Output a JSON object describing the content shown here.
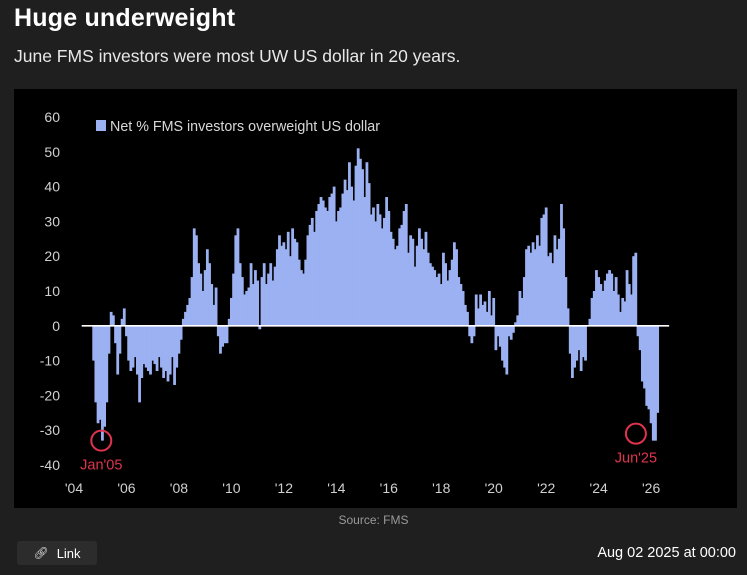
{
  "header": {
    "title": "Huge underweight",
    "subtitle": "June FMS investors were most UW US dollar in 20 years."
  },
  "footer": {
    "source": "Source: FMS",
    "link_label": "Link",
    "link_icon": "link-icon",
    "timestamp": "Aug 02 2025 at 00:00"
  },
  "colors": {
    "bar": "#9bb1f2",
    "background": "#000000",
    "axis_text": "#d0d0d0",
    "annotation": "#e0344d",
    "zero_line": "#ffffff"
  },
  "chart_data": {
    "type": "bar",
    "title": "",
    "xlabel": "",
    "ylabel": "",
    "xlim": [
      2004.0,
      2026.3
    ],
    "ylim": [
      -40,
      60
    ],
    "x_ticks": [
      2004,
      2006,
      2008,
      2010,
      2012,
      2014,
      2016,
      2018,
      2020,
      2022,
      2024,
      2026
    ],
    "x_tick_labels": [
      "'04",
      "'06",
      "'08",
      "'10",
      "'12",
      "'14",
      "'16",
      "'18",
      "'20",
      "'22",
      "'24",
      "'26"
    ],
    "y_ticks": [
      60,
      50,
      40,
      30,
      20,
      10,
      0,
      -10,
      -20,
      -30,
      -40
    ],
    "grid": false,
    "legend": {
      "position": "top-left",
      "entries": [
        "Net % FMS investors overweight US dollar"
      ]
    },
    "series": [
      {
        "name": "Net % FMS investors overweight US dollar",
        "x_start": 2004.75,
        "step": 0.08333,
        "values": [
          -10,
          -22,
          -28,
          -27,
          -33,
          -29,
          -22,
          -8,
          4,
          3,
          -5,
          -14,
          -8,
          2,
          5,
          -3,
          -10,
          -13,
          -12,
          -9,
          -14,
          -22,
          -15,
          -11,
          -12,
          -13,
          -14,
          -10,
          -11,
          -13,
          -9,
          -12,
          -15,
          -13,
          -16,
          -14,
          -9,
          -17,
          -12,
          -8,
          -4,
          2,
          4,
          6,
          8,
          14,
          28,
          26,
          18,
          15,
          10,
          16,
          22,
          18,
          12,
          6,
          11,
          -3,
          -8,
          -6,
          -5,
          -5,
          2,
          8,
          15,
          26,
          28,
          18,
          14,
          9,
          10,
          11,
          18,
          12,
          16,
          13,
          -1,
          14,
          18,
          12,
          15,
          18,
          13,
          17,
          22,
          26,
          23,
          24,
          22,
          27,
          20,
          28,
          25,
          24,
          19,
          16,
          15,
          19,
          26,
          29,
          31,
          27,
          33,
          35,
          37,
          36,
          34,
          33,
          37,
          38,
          40,
          30,
          33,
          34,
          38,
          42,
          39,
          47,
          40,
          36,
          46,
          51,
          48,
          45,
          37,
          47,
          41,
          32,
          34,
          30,
          35,
          32,
          28,
          31,
          37,
          33,
          27,
          25,
          22,
          23,
          28,
          29,
          33,
          35,
          21,
          26,
          25,
          17,
          23,
          28,
          25,
          22,
          27,
          21,
          18,
          17,
          16,
          14,
          15,
          12,
          21,
          18,
          13,
          16,
          19,
          24,
          22,
          14,
          12,
          10,
          6,
          4,
          -3,
          -5,
          -3,
          9,
          5,
          9,
          6,
          7,
          4,
          10,
          3,
          8,
          -7,
          -3,
          -6,
          -10,
          -12,
          -14,
          -3,
          -4,
          -2,
          1,
          3,
          10,
          8,
          14,
          22,
          23,
          21,
          24,
          22,
          26,
          23,
          31,
          32,
          34,
          20,
          21,
          18,
          26,
          22,
          25,
          35,
          28,
          14,
          5,
          -8,
          -15,
          -12,
          -10,
          -7,
          -13,
          -9,
          -10,
          0,
          2,
          8,
          10,
          16,
          14,
          12,
          10,
          13,
          15,
          16,
          15,
          10,
          14,
          9,
          4,
          8,
          7,
          16,
          12,
          9,
          20,
          21,
          -3,
          -7,
          -16,
          -18,
          -23,
          -24,
          -28,
          -33,
          -33,
          -25
        ]
      }
    ],
    "annotations": [
      {
        "label": "Jan'05",
        "x": 2005.04,
        "y": -33,
        "position": "below"
      },
      {
        "label": "Jun'25",
        "x": 2025.42,
        "y": -31,
        "position": "below"
      }
    ]
  }
}
